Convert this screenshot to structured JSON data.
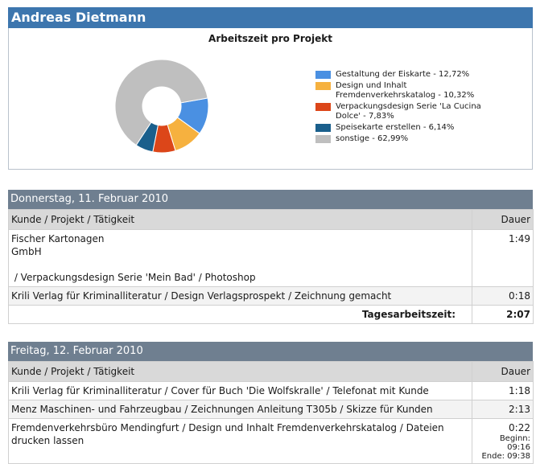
{
  "user": {
    "name": "Andreas Dietmann"
  },
  "chart_data": {
    "type": "pie",
    "title": "Arbeitszeit pro Projekt",
    "slices": [
      {
        "label": "Gestaltung der Eiskarte - 12,72%",
        "value": 12.72,
        "color": "#4a90e2"
      },
      {
        "label": "Design und Inhalt Fremdenverkehrskatalog - 10,32%",
        "value": 10.32,
        "color": "#f6b13f"
      },
      {
        "label": "Verpackungsdesign Serie 'La Cucina Dolce' - 7,83%",
        "value": 7.83,
        "color": "#dc4619"
      },
      {
        "label": "Speisekarte erstellen - 6,14%",
        "value": 6.14,
        "color": "#1a5f8c"
      },
      {
        "label": "sonstige - 62,99%",
        "value": 62.99,
        "color": "#bfbfbf"
      }
    ],
    "legend_position": "right"
  },
  "days": [
    {
      "title": "Donnerstag, 11. Februar 2010",
      "columns": {
        "task": "Kunde / Projekt / Tätigkeit",
        "duration": "Dauer"
      },
      "rows": [
        {
          "line1": "Fischer Kartonagen",
          "line2": "GmbH",
          "line3": "",
          "line4": " / Verpackungsdesign Serie 'Mein Bad' / Photoshop",
          "duration": "1:49"
        },
        {
          "line1": "Krili Verlag für Kriminalliteratur / Design Verlagsprospekt / Zeichnung gemacht",
          "duration": "0:18"
        }
      ],
      "total_label": "Tagesarbeitszeit:",
      "total": "2:07"
    },
    {
      "title": "Freitag, 12. Februar 2010",
      "columns": {
        "task": "Kunde / Projekt / Tätigkeit",
        "duration": "Dauer"
      },
      "rows": [
        {
          "line1": "Krili Verlag für Kriminalliteratur / Cover für Buch 'Die Wolfskralle' / Telefonat mit Kunde",
          "duration": "1:18"
        },
        {
          "line1": "Menz Maschinen- und Fahrzeugbau / Zeichnungen Anleitung T305b / Skizze für Kunden",
          "duration": "2:13"
        },
        {
          "line1": "Fremdenverkehrsbüro Mendingfurt / Design und Inhalt Fremdenverkehrskatalog / Dateien drucken lassen",
          "duration": "0:22",
          "begin": "Beginn: 09:16",
          "end": "Ende: 09:38"
        }
      ]
    }
  ]
}
